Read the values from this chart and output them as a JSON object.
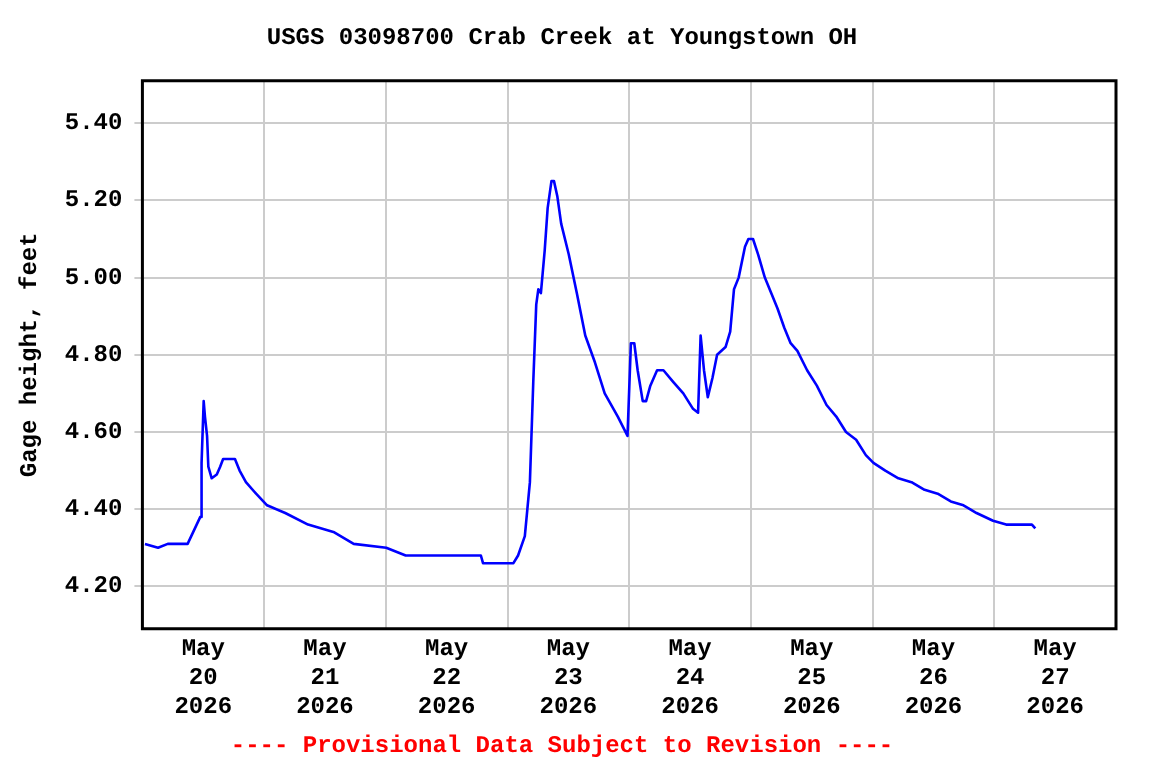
{
  "chart_data": {
    "type": "line",
    "title": "USGS 03098700 Crab Creek at Youngstown OH",
    "ylabel": "Gage height, feet",
    "annotations": [
      "---- Provisional Data Subject to Revision ----"
    ],
    "x": [
      "2026-05-20T00:30",
      "2026-05-20T03:05",
      "2026-05-20T05:00",
      "2026-05-20T08:55",
      "2026-05-20T11:25",
      "2026-05-20T11:40",
      "2026-05-20T12:05",
      "2026-05-20T12:20",
      "2026-05-20T12:45",
      "2026-05-20T13:00",
      "2026-05-20T13:40",
      "2026-05-20T14:40",
      "2026-05-20T15:20",
      "2026-05-20T15:55",
      "2026-05-20T18:15",
      "2026-05-20T19:10",
      "2026-05-20T20:25",
      "2026-05-20T22:25",
      "2026-05-21T00:35",
      "2026-05-21T04:10",
      "2026-05-21T08:40",
      "2026-05-21T13:50",
      "2026-05-21T17:40",
      "2026-05-22T00:05",
      "2026-05-22T03:55",
      "2026-05-22T18:45",
      "2026-05-22T19:10",
      "2026-05-23T01:10",
      "2026-05-23T02:05",
      "2026-05-23T03:25",
      "2026-05-23T03:55",
      "2026-05-23T04:25",
      "2026-05-23T05:05",
      "2026-05-23T05:40",
      "2026-05-23T06:05",
      "2026-05-23T06:35",
      "2026-05-23T07:20",
      "2026-05-23T07:55",
      "2026-05-23T08:40",
      "2026-05-23T09:10",
      "2026-05-23T09:50",
      "2026-05-23T10:35",
      "2026-05-23T12:05",
      "2026-05-23T13:40",
      "2026-05-23T15:20",
      "2026-05-23T17:15",
      "2026-05-23T19:10",
      "2026-05-23T21:45",
      "2026-05-23T23:40",
      "2026-05-24T00:20",
      "2026-05-24T01:00",
      "2026-05-24T01:40",
      "2026-05-24T02:40",
      "2026-05-24T03:20",
      "2026-05-24T04:10",
      "2026-05-24T05:30",
      "2026-05-24T06:45",
      "2026-05-24T08:40",
      "2026-05-24T10:40",
      "2026-05-24T12:35",
      "2026-05-24T13:35",
      "2026-05-24T14:05",
      "2026-05-24T14:45",
      "2026-05-24T15:30",
      "2026-05-24T16:25",
      "2026-05-24T17:20",
      "2026-05-24T19:00",
      "2026-05-24T19:55",
      "2026-05-24T20:40",
      "2026-05-24T21:35",
      "2026-05-24T22:50",
      "2026-05-24T23:30",
      "2026-05-25T00:25",
      "2026-05-25T01:25",
      "2026-05-25T02:45",
      "2026-05-25T04:00",
      "2026-05-25T05:15",
      "2026-05-25T06:35",
      "2026-05-25T07:50",
      "2026-05-25T09:10",
      "2026-05-25T11:05",
      "2026-05-25T13:00",
      "2026-05-25T14:55",
      "2026-05-25T16:50",
      "2026-05-25T18:45",
      "2026-05-25T20:45",
      "2026-05-25T22:40",
      "2026-05-26T00:10",
      "2026-05-26T02:30",
      "2026-05-26T05:05",
      "2026-05-26T07:40",
      "2026-05-26T10:15",
      "2026-05-26T12:50",
      "2026-05-26T15:25",
      "2026-05-26T17:55",
      "2026-05-26T20:30",
      "2026-05-26T23:45",
      "2026-05-27T02:20",
      "2026-05-27T07:25",
      "2026-05-27T08:05"
    ],
    "series": [
      {
        "color": "#0000ff",
        "values": [
          4.31,
          4.3,
          4.31,
          4.31,
          4.38,
          4.52,
          4.68,
          4.64,
          4.59,
          4.51,
          4.48,
          4.49,
          4.51,
          4.53,
          4.53,
          4.5,
          4.47,
          4.44,
          4.41,
          4.39,
          4.36,
          4.34,
          4.31,
          4.3,
          4.28,
          4.28,
          4.26,
          4.26,
          4.28,
          4.33,
          4.4,
          4.47,
          4.73,
          4.93,
          4.97,
          4.96,
          5.07,
          5.18,
          5.25,
          5.25,
          5.21,
          5.14,
          5.06,
          4.96,
          4.85,
          4.78,
          4.7,
          4.64,
          4.59,
          4.83,
          4.83,
          4.76,
          4.68,
          4.68,
          4.72,
          4.76,
          4.76,
          4.73,
          4.7,
          4.66,
          4.65,
          4.85,
          4.76,
          4.69,
          4.74,
          4.8,
          4.82,
          4.86,
          4.97,
          5.0,
          5.08,
          5.1,
          5.1,
          5.06,
          5.0,
          4.96,
          4.92,
          4.87,
          4.83,
          4.81,
          4.76,
          4.72,
          4.67,
          4.64,
          4.6,
          4.58,
          4.54,
          4.52,
          4.5,
          4.48,
          4.47,
          4.45,
          4.44,
          4.42,
          4.41,
          4.39,
          4.37,
          4.36,
          4.36,
          4.35
        ]
      }
    ],
    "xlim": [
      "2026-05-20T00:00",
      "2026-05-28T00:00"
    ],
    "xticks": [
      {
        "value": "2026-05-20T12:00",
        "label": "May 20 2026"
      },
      {
        "value": "2026-05-21T00:00",
        "label": null
      },
      {
        "value": "2026-05-21T12:00",
        "label": "May 21 2026"
      },
      {
        "value": "2026-05-22T00:00",
        "label": null
      },
      {
        "value": "2026-05-22T12:00",
        "label": "May 22 2026"
      },
      {
        "value": "2026-05-23T00:00",
        "label": null
      },
      {
        "value": "2026-05-23T12:00",
        "label": "May 23 2026"
      },
      {
        "value": "2026-05-24T00:00",
        "label": null
      },
      {
        "value": "2026-05-24T12:00",
        "label": "May 24 2026"
      },
      {
        "value": "2026-05-25T00:00",
        "label": null
      },
      {
        "value": "2026-05-25T12:00",
        "label": "May 25 2026"
      },
      {
        "value": "2026-05-26T00:00",
        "label": null
      },
      {
        "value": "2026-05-26T12:00",
        "label": "May 26 2026"
      },
      {
        "value": "2026-05-27T00:00",
        "label": null
      },
      {
        "value": "2026-05-27T12:00",
        "label": "May 27 2026"
      }
    ],
    "ylim": [
      4.09,
      5.51
    ],
    "yticks": [
      {
        "value": 4.2,
        "label": "4.20"
      },
      {
        "value": 4.4,
        "label": "4.40"
      },
      {
        "value": 4.6,
        "label": "4.60"
      },
      {
        "value": 4.8,
        "label": "4.80"
      },
      {
        "value": 5.0,
        "label": "5.00"
      },
      {
        "value": 5.2,
        "label": "5.20"
      },
      {
        "value": 5.4,
        "label": "5.40"
      }
    ],
    "grid": true,
    "legend": false,
    "marker": "none"
  }
}
